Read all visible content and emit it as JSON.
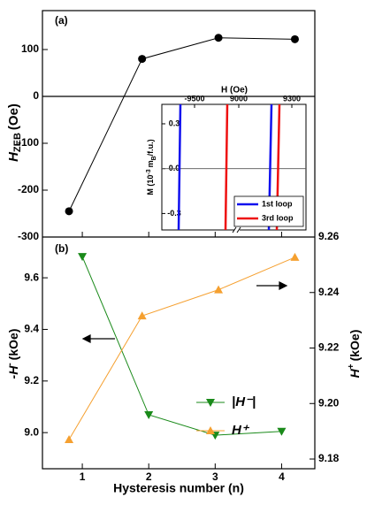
{
  "chart_data": [
    {
      "type": "line",
      "panel_label": "(a)",
      "y_label": {
        "main": "H",
        "sub": "ZEB",
        "unit": "(Oe)"
      },
      "x": [
        0.8,
        1.9,
        3.05,
        4.2
      ],
      "values": [
        -245,
        80,
        125,
        122
      ],
      "color": "#000000",
      "xlim": [
        0.4,
        4.5
      ],
      "xticks": [
        1,
        2,
        3,
        4
      ],
      "ylim": [
        -300,
        183
      ],
      "yticks": [
        -300,
        -200,
        -100,
        0,
        100
      ],
      "zero_line": true
    },
    {
      "type": "line",
      "panel_label": "(b)",
      "x_label": "Hysteresis number (n)",
      "y_label": {
        "main": "-H",
        "sup": "-",
        "unit": "(kOe)"
      },
      "y2_label": {
        "main": "H",
        "sup": "+",
        "unit": "(kOe)"
      },
      "xlim": [
        0.4,
        4.5
      ],
      "xticks": [
        1,
        2,
        3,
        4
      ],
      "ylim": [
        8.86,
        9.758
      ],
      "yticks": [
        {
          "value": 9,
          "label": "9.0"
        },
        9.2,
        9.4,
        9.6
      ],
      "y2lim": [
        9.1765,
        9.26
      ],
      "y2ticks": [
        9.18,
        {
          "value": 9.2,
          "label": "9.20"
        },
        9.22,
        9.24,
        9.26
      ],
      "series": [
        {
          "name": "|H⁻|",
          "color": "#1a8a1a",
          "marker": "triangle-down",
          "x": [
            1,
            2,
            3,
            4
          ],
          "values": [
            9.682,
            9.069,
            8.99,
            9.005
          ]
        },
        {
          "name": "H⁺",
          "color": "#f5a030",
          "marker": "triangle-up",
          "axis": "y2",
          "x": [
            0.8,
            1.9,
            3.05,
            4.2
          ],
          "values": [
            9.187,
            9.2316,
            9.241,
            9.2527
          ]
        }
      ]
    },
    {
      "type": "line",
      "x_label": "H (Oe)",
      "y_label": {
        "main": "M (10",
        "sup": "-3",
        "unit": "m",
        "sub": "B",
        "tail": "/f.u.)"
      },
      "xlim": [
        [
          -9685,
          -9270
        ],
        [
          9000,
          9380
        ]
      ],
      "xticks": [
        -9500,
        9000,
        9300
      ],
      "ylim": [
        -0.41,
        0.43
      ],
      "yticks": [
        -0.3,
        {
          "value": 0,
          "label": "0.0"
        },
        0.3
      ],
      "zero_line": true,
      "series": [
        {
          "name": "1st loop",
          "color": "#1010ee",
          "x": [
            -9590,
            -9580,
            null,
            9170,
            9185
          ],
          "values": [
            -0.41,
            0.43,
            null,
            -0.41,
            0.43
          ]
        },
        {
          "name": "3rd loop",
          "color": "#ee1010",
          "x": [
            -9325,
            -9315,
            null,
            9215,
            9230
          ],
          "values": [
            -0.41,
            0.43,
            null,
            -0.41,
            0.43
          ]
        }
      ]
    }
  ]
}
